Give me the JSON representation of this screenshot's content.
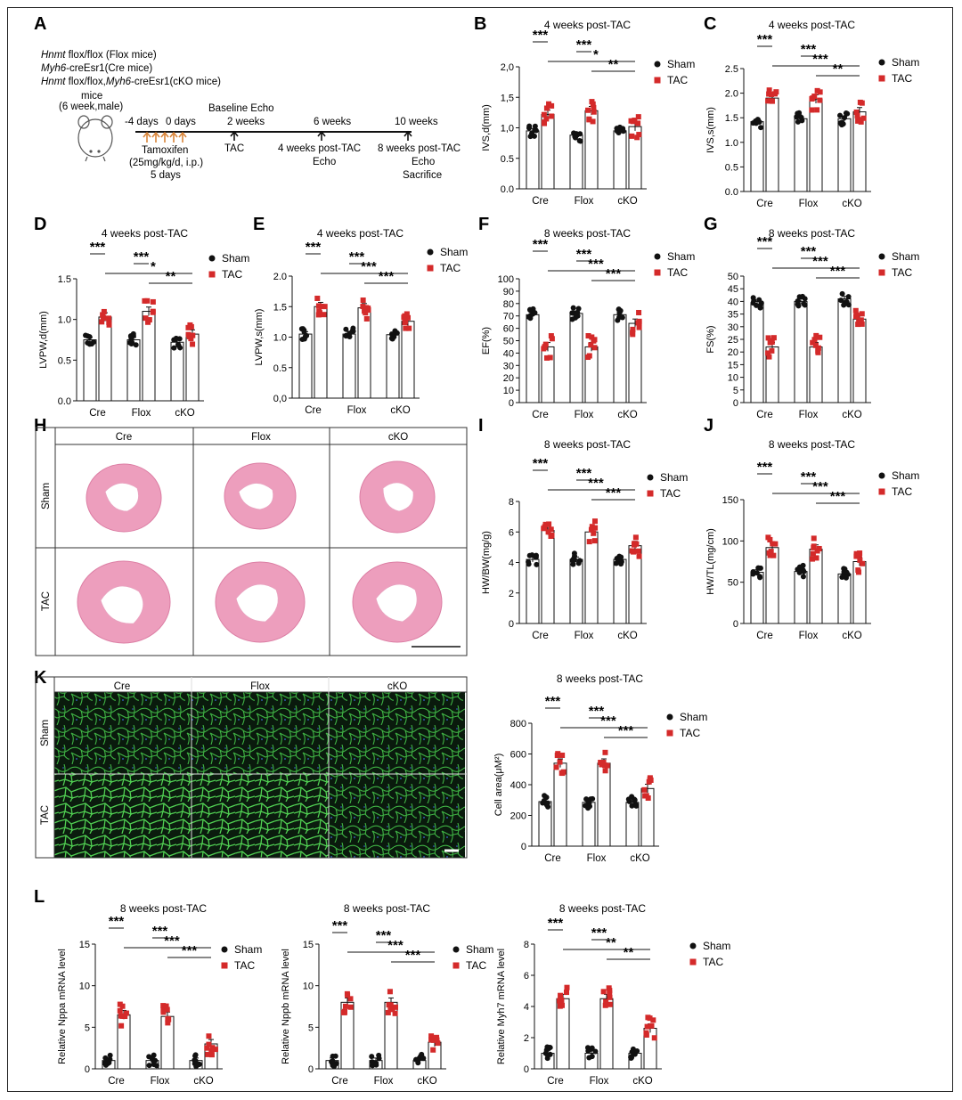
{
  "panel_letters": [
    "A",
    "B",
    "C",
    "D",
    "E",
    "F",
    "G",
    "H",
    "I",
    "J",
    "K",
    "L"
  ],
  "schematic": {
    "mouse_lines": [
      {
        "italic": "Hnmt",
        "rest": " flox/flox (Flox mice)"
      },
      {
        "italic": "Myh6",
        "rest": "-creEsr1(Cre mice)"
      },
      {
        "italic": "Hnmt",
        "rest": " flox/flox,",
        "italic2": "Myh6",
        "rest2": "-creEsr1(cKO mice)"
      }
    ],
    "mice_label": "mice",
    "mice_sub": "(6 week,male)",
    "day_m4": "-4 days",
    "day_0": "0 days",
    "baseline": "Baseline Echo",
    "w2": "2 weeks",
    "w6": "6 weeks",
    "w10": "10 weeks",
    "tamoxifen": "Tamoxifen",
    "dose": "(25mg/kg/d, i.p.)",
    "five_days": "5 days",
    "tac": "TAC",
    "post4": "4 weeks post-TAC",
    "echo": "Echo",
    "post8": "8 weeks post-TAC",
    "echo2": "Echo",
    "sacrifice": "Sacrifice"
  },
  "legend": {
    "sham": "Sham",
    "tac": "TAC"
  },
  "colors": {
    "sham": "#111111",
    "tac": "#d42a2a",
    "he_stain": "#e99bb8",
    "wga": "#49c14a"
  },
  "he_panel": {
    "columns": [
      "Cre",
      "Flox",
      "cKO"
    ],
    "rows": [
      "Sham",
      "TAC"
    ]
  },
  "wga_panel": {
    "columns": [
      "Cre",
      "Flox",
      "cKO"
    ],
    "rows": [
      "Sham",
      "TAC"
    ],
    "title": "8 weeks post-TAC"
  },
  "chart_data": [
    {
      "id": "B",
      "type": "bar",
      "title": "4 weeks post-TAC",
      "ylabel": "IVS,d(mm)",
      "yticks": [
        "0.0",
        "0.5",
        "1,0",
        "1,5",
        "2,0"
      ],
      "ylim": [
        0,
        2.0
      ],
      "categories": [
        "Cre",
        "Flox",
        "cKO"
      ],
      "series": [
        {
          "name": "Sham",
          "values": [
            0.95,
            0.88,
            0.95
          ]
        },
        {
          "name": "TAC",
          "values": [
            1.22,
            1.28,
            1.02
          ]
        }
      ],
      "sig": [
        {
          "g1": 0,
          "g2": 1,
          "label": "***"
        },
        {
          "g1": 2,
          "g2": 3,
          "label": "***"
        },
        {
          "g1": 1,
          "g2": 5,
          "label": "*"
        },
        {
          "g1": 3,
          "g2": 5,
          "label": "**"
        }
      ]
    },
    {
      "id": "C",
      "type": "bar",
      "title": "4 weeks post-TAC",
      "ylabel": "IVS,s(mm)",
      "yticks": [
        "0.0",
        "0.5",
        "1.0",
        "1.5",
        "2.0",
        "2.5"
      ],
      "ylim": [
        0,
        2.5
      ],
      "categories": [
        "Cre",
        "Flox",
        "cKO"
      ],
      "series": [
        {
          "name": "Sham",
          "values": [
            1.42,
            1.48,
            1.48
          ]
        },
        {
          "name": "TAC",
          "values": [
            1.9,
            1.88,
            1.62
          ]
        }
      ],
      "sig": [
        {
          "g1": 0,
          "g2": 1,
          "label": "***"
        },
        {
          "g1": 2,
          "g2": 3,
          "label": "***"
        },
        {
          "g1": 1,
          "g2": 5,
          "label": "***"
        },
        {
          "g1": 3,
          "g2": 5,
          "label": "**"
        }
      ]
    },
    {
      "id": "D",
      "type": "bar",
      "title": "4 weeks post-TAC",
      "ylabel": "LVPW,d(mm)",
      "yticks": [
        "0.0",
        "0.5",
        "1.0",
        "1.5"
      ],
      "ylim": [
        0,
        1.5
      ],
      "categories": [
        "Cre",
        "Flox",
        "cKO"
      ],
      "series": [
        {
          "name": "Sham",
          "values": [
            0.75,
            0.75,
            0.72
          ]
        },
        {
          "name": "TAC",
          "values": [
            1.03,
            1.1,
            0.82
          ]
        }
      ],
      "sig": [
        {
          "g1": 0,
          "g2": 1,
          "label": "***"
        },
        {
          "g1": 2,
          "g2": 3,
          "label": "***"
        },
        {
          "g1": 1,
          "g2": 5,
          "label": "*"
        },
        {
          "g1": 3,
          "g2": 5,
          "label": "**"
        }
      ]
    },
    {
      "id": "E",
      "type": "bar",
      "title": "4 weeks post-TAC",
      "ylabel": "LVPW,s(mm)",
      "yticks": [
        "0,0",
        "0.5",
        "1.0",
        "1.5",
        "2.0"
      ],
      "ylim": [
        0,
        2.0
      ],
      "categories": [
        "Cre",
        "Flox",
        "cKO"
      ],
      "series": [
        {
          "name": "Sham",
          "values": [
            1.05,
            1.05,
            1.04
          ]
        },
        {
          "name": "TAC",
          "values": [
            1.5,
            1.48,
            1.26
          ]
        }
      ],
      "sig": [
        {
          "g1": 0,
          "g2": 1,
          "label": "***"
        },
        {
          "g1": 2,
          "g2": 3,
          "label": "***"
        },
        {
          "g1": 1,
          "g2": 5,
          "label": "***"
        },
        {
          "g1": 3,
          "g2": 5,
          "label": "***"
        }
      ]
    },
    {
      "id": "F",
      "type": "bar",
      "title": "8 weeks post-TAC",
      "ylabel": "EF(%)",
      "yticks": [
        "0",
        "10",
        "20",
        "30",
        "40",
        "50",
        "60",
        "70",
        "80",
        "90",
        "100"
      ],
      "ylim": [
        0,
        100
      ],
      "categories": [
        "Cre",
        "Flox",
        "cKO"
      ],
      "series": [
        {
          "name": "Sham",
          "values": [
            71,
            72,
            71
          ]
        },
        {
          "name": "TAC",
          "values": [
            45,
            45,
            64
          ]
        }
      ],
      "sig": [
        {
          "g1": 0,
          "g2": 1,
          "label": "***"
        },
        {
          "g1": 2,
          "g2": 3,
          "label": "***"
        },
        {
          "g1": 1,
          "g2": 5,
          "label": "***"
        },
        {
          "g1": 3,
          "g2": 5,
          "label": "***"
        }
      ]
    },
    {
      "id": "G",
      "type": "bar",
      "title": "8 weeks post-TAC",
      "ylabel": "FS(%)",
      "yticks": [
        "0",
        "5",
        "10",
        "15",
        "20",
        "25",
        "30",
        "35",
        "40",
        "45",
        "50"
      ],
      "ylim": [
        0,
        50
      ],
      "categories": [
        "Cre",
        "Flox",
        "cKO"
      ],
      "series": [
        {
          "name": "Sham",
          "values": [
            39,
            40,
            41
          ]
        },
        {
          "name": "TAC",
          "values": [
            22,
            22,
            33
          ]
        }
      ],
      "sig": [
        {
          "g1": 0,
          "g2": 1,
          "label": "***"
        },
        {
          "g1": 2,
          "g2": 3,
          "label": "***"
        },
        {
          "g1": 1,
          "g2": 5,
          "label": "***"
        },
        {
          "g1": 3,
          "g2": 5,
          "label": "***"
        }
      ]
    },
    {
      "id": "I",
      "type": "bar",
      "title": "8 weeks post-TAC",
      "ylabel": "HW/BW(mg/g)",
      "yticks": [
        "0",
        "2",
        "4",
        "6",
        "8"
      ],
      "ylim": [
        0,
        8
      ],
      "categories": [
        "Cre",
        "Flox",
        "cKO"
      ],
      "series": [
        {
          "name": "Sham",
          "values": [
            4.2,
            4.2,
            4.2
          ]
        },
        {
          "name": "TAC",
          "values": [
            6.1,
            6.0,
            5.1
          ]
        }
      ],
      "sig": [
        {
          "g1": 0,
          "g2": 1,
          "label": "***"
        },
        {
          "g1": 2,
          "g2": 3,
          "label": "***"
        },
        {
          "g1": 1,
          "g2": 5,
          "label": "***"
        },
        {
          "g1": 3,
          "g2": 5,
          "label": "***"
        }
      ]
    },
    {
      "id": "J",
      "type": "bar",
      "title": "8 weeks post-TAC",
      "ylabel": "HW/TL(mg/cm)",
      "yticks": [
        "0",
        "50",
        "100",
        "150"
      ],
      "ylim": [
        0,
        150
      ],
      "categories": [
        "Cre",
        "Flox",
        "cKO"
      ],
      "series": [
        {
          "name": "Sham",
          "values": [
            62,
            63,
            60
          ]
        },
        {
          "name": "TAC",
          "values": [
            92,
            90,
            75
          ]
        }
      ],
      "sig": [
        {
          "g1": 0,
          "g2": 1,
          "label": "***"
        },
        {
          "g1": 2,
          "g2": 3,
          "label": "***"
        },
        {
          "g1": 1,
          "g2": 5,
          "label": "***"
        },
        {
          "g1": 3,
          "g2": 5,
          "label": "***"
        }
      ]
    },
    {
      "id": "K",
      "type": "bar",
      "title": "8 weeks post-TAC",
      "ylabel": "Cell area(μM²)",
      "yticks": [
        "0",
        "200",
        "400",
        "600",
        "800"
      ],
      "ylim": [
        0,
        800
      ],
      "categories": [
        "Cre",
        "Flox",
        "cKO"
      ],
      "series": [
        {
          "name": "Sham",
          "values": [
            290,
            285,
            285
          ]
        },
        {
          "name": "TAC",
          "values": [
            540,
            540,
            375
          ]
        }
      ],
      "sig": [
        {
          "g1": 0,
          "g2": 1,
          "label": "***"
        },
        {
          "g1": 2,
          "g2": 3,
          "label": "***"
        },
        {
          "g1": 1,
          "g2": 5,
          "label": "***"
        },
        {
          "g1": 3,
          "g2": 5,
          "label": "***"
        }
      ]
    },
    {
      "id": "L1",
      "type": "bar",
      "title": "8 weeks post-TAC",
      "ylabel": "Relative Nppa mRNA level",
      "yticks": [
        "0",
        "5",
        "10",
        "15"
      ],
      "ylim": [
        0,
        15
      ],
      "categories": [
        "Cre",
        "Flox",
        "cKO"
      ],
      "series": [
        {
          "name": "Sham",
          "values": [
            1.0,
            1.0,
            1.0
          ]
        },
        {
          "name": "TAC",
          "values": [
            6.5,
            6.3,
            3.0
          ]
        }
      ],
      "sig": [
        {
          "g1": 0,
          "g2": 1,
          "label": "***"
        },
        {
          "g1": 2,
          "g2": 3,
          "label": "***"
        },
        {
          "g1": 1,
          "g2": 5,
          "label": "***"
        },
        {
          "g1": 3,
          "g2": 5,
          "label": "***"
        }
      ]
    },
    {
      "id": "L2",
      "type": "bar",
      "title": "8 weeks post-TAC",
      "ylabel": "Relative Nppb mRNA level",
      "yticks": [
        "0",
        "5",
        "10",
        "15"
      ],
      "ylim": [
        0,
        15
      ],
      "categories": [
        "Cre",
        "Flox",
        "cKO"
      ],
      "series": [
        {
          "name": "Sham",
          "values": [
            1.0,
            1.0,
            1.0
          ]
        },
        {
          "name": "TAC",
          "values": [
            8.0,
            8.0,
            3.2
          ]
        }
      ],
      "sig": [
        {
          "g1": 0,
          "g2": 1,
          "label": "***"
        },
        {
          "g1": 2,
          "g2": 3,
          "label": "***"
        },
        {
          "g1": 1,
          "g2": 5,
          "label": "***"
        },
        {
          "g1": 3,
          "g2": 5,
          "label": "***"
        }
      ]
    },
    {
      "id": "L3",
      "type": "bar",
      "title": "8 weeks post-TAC",
      "ylabel": "Relative Myh7 mRNA level",
      "yticks": [
        "0",
        "2",
        "4",
        "6",
        "8"
      ],
      "ylim": [
        0,
        8
      ],
      "categories": [
        "Cre",
        "Flox",
        "cKO"
      ],
      "series": [
        {
          "name": "Sham",
          "values": [
            1.0,
            1.0,
            1.0
          ]
        },
        {
          "name": "TAC",
          "values": [
            4.5,
            4.5,
            2.6
          ]
        }
      ],
      "sig": [
        {
          "g1": 0,
          "g2": 1,
          "label": "***"
        },
        {
          "g1": 2,
          "g2": 3,
          "label": "***"
        },
        {
          "g1": 1,
          "g2": 5,
          "label": "**"
        },
        {
          "g1": 3,
          "g2": 5,
          "label": "**"
        }
      ]
    }
  ]
}
